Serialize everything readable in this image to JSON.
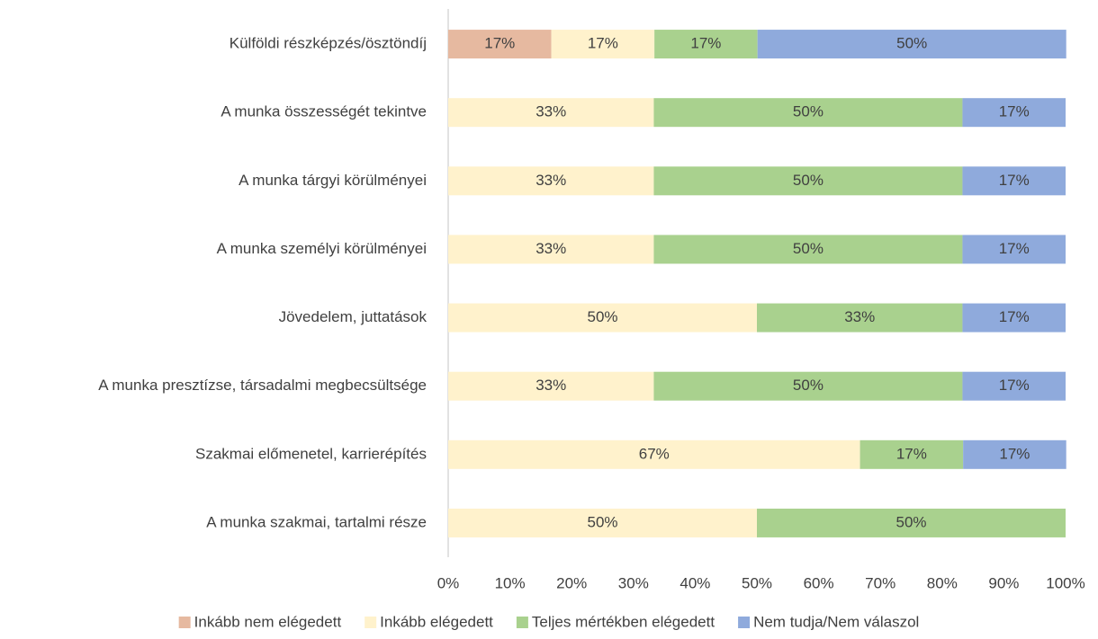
{
  "chart_data": {
    "type": "stacked_bar_horizontal",
    "categories": [
      "Külföldi részképzés/ösztöndíj",
      "A munka összességét tekintve",
      "A munka tárgyi körülményei",
      "A munka személyi körülményei",
      "Jövedelem, juttatások",
      "A munka presztízse, társadalmi megbecsültsége",
      "Szakmai előmenetel, karrierépítés",
      "A munka szakmai, tartalmi része"
    ],
    "series": [
      {
        "name": "Inkább nem elégedett",
        "color": "#e6b9a0",
        "values": [
          16.7,
          null,
          null,
          null,
          null,
          null,
          null,
          null
        ],
        "value_labels": [
          "17%",
          null,
          null,
          null,
          null,
          null,
          null,
          null
        ]
      },
      {
        "name": "Inkább elégedett",
        "color": "#fff2cc",
        "values": [
          16.7,
          33.3,
          33.3,
          33.3,
          50,
          33.3,
          66.7,
          50
        ],
        "value_labels": [
          "17%",
          "33%",
          "33%",
          "33%",
          "50%",
          "33%",
          "67%",
          "50%"
        ]
      },
      {
        "name": "Teljes mértékben elégedett",
        "color": "#a9d18e",
        "values": [
          16.7,
          50,
          50,
          50,
          33.3,
          50,
          16.7,
          50
        ],
        "value_labels": [
          "17%",
          "50%",
          "50%",
          "50%",
          "33%",
          "50%",
          "17%",
          "50%"
        ]
      },
      {
        "name": "Nem tudja/Nem válaszol",
        "color": "#8faadc",
        "values": [
          50,
          16.7,
          16.7,
          16.7,
          16.7,
          16.7,
          16.7,
          null
        ],
        "value_labels": [
          "50%",
          "17%",
          "17%",
          "17%",
          "17%",
          "17%",
          "17%",
          null
        ]
      }
    ],
    "xlim": [
      0,
      100
    ],
    "xticks": [
      {
        "value": 0,
        "label": "0%"
      },
      {
        "value": 10,
        "label": "10%"
      },
      {
        "value": 20,
        "label": "20%"
      },
      {
        "value": 30,
        "label": "30%"
      },
      {
        "value": 40,
        "label": "40%"
      },
      {
        "value": 50,
        "label": "50%"
      },
      {
        "value": 60,
        "label": "60%"
      },
      {
        "value": 70,
        "label": "70%"
      },
      {
        "value": 80,
        "label": "80%"
      },
      {
        "value": 90,
        "label": "90%"
      },
      {
        "value": 100,
        "label": "100%"
      }
    ],
    "legend": "bottom"
  }
}
